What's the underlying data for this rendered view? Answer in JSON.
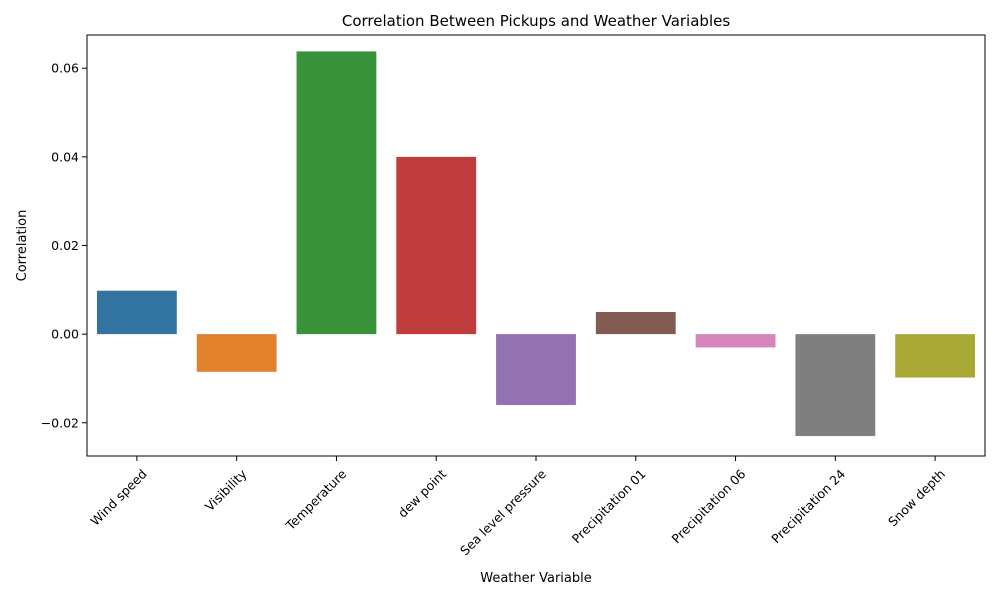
{
  "chart_data": {
    "type": "bar",
    "title": "Correlation Between Pickups and Weather Variables",
    "xlabel": "Weather Variable",
    "ylabel": "Correlation",
    "categories": [
      "Wind speed",
      "Visibility",
      "Temperature",
      "dew point",
      "Sea level pressure",
      "Precipitation 01",
      "Precipitation 06",
      "Precipitation 24",
      "Snow depth"
    ],
    "values": [
      0.0098,
      -0.0085,
      0.0638,
      0.04,
      -0.016,
      0.005,
      -0.003,
      -0.023,
      -0.0098
    ],
    "colors": [
      "#3274a1",
      "#e1812c",
      "#3a923a",
      "#c03d3e",
      "#9372b2",
      "#845b53",
      "#d684bd",
      "#7f7f7f",
      "#a9aa35"
    ],
    "ylim": [
      -0.0275,
      0.0675
    ],
    "yticks": [
      -0.02,
      0.0,
      0.02,
      0.04,
      0.06
    ],
    "ytick_labels": [
      "−0.02",
      "0.00",
      "0.02",
      "0.04",
      "0.06"
    ],
    "grid": false,
    "legend": "none"
  }
}
